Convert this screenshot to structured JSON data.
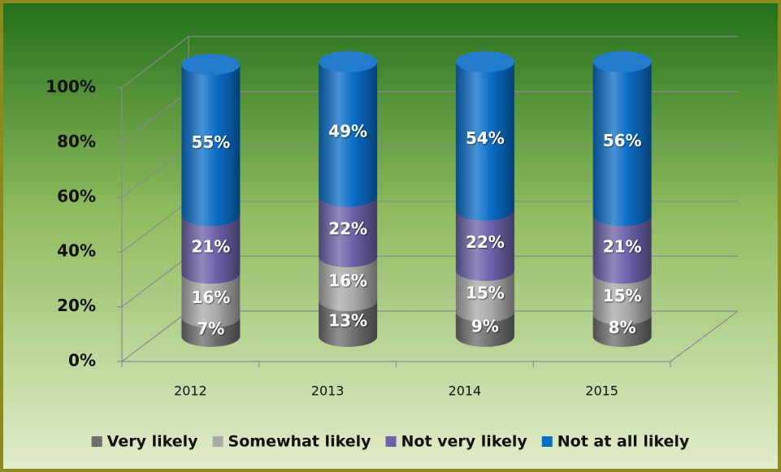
{
  "chart_data": {
    "type": "bar",
    "stacked": true,
    "categories": [
      "2012",
      "2013",
      "2014",
      "2015"
    ],
    "series": [
      {
        "name": "Very likely",
        "color": "#6e6e6e",
        "values": [
          7,
          13,
          9,
          8
        ],
        "value_labels": [
          "7%",
          "13%",
          "9%",
          "8%"
        ]
      },
      {
        "name": "Somewhat likely",
        "color": "#a9a9a9",
        "values": [
          16,
          16,
          15,
          15
        ],
        "value_labels": [
          "16%",
          "16%",
          "15%",
          "15%"
        ]
      },
      {
        "name": "Not very likely",
        "color": "#6b62a8",
        "values": [
          21,
          22,
          22,
          21
        ],
        "value_labels": [
          "21%",
          "22%",
          "22%",
          "21%"
        ]
      },
      {
        "name": "Not at all likely",
        "color": "#0b6cc6",
        "values": [
          55,
          49,
          54,
          56
        ],
        "value_labels": [
          "55%",
          "49%",
          "54%",
          "56%"
        ]
      }
    ],
    "ylim": [
      0,
      100
    ],
    "yticks": [
      {
        "value": 0,
        "label": "0%"
      },
      {
        "value": 20,
        "label": "20%"
      },
      {
        "value": 40,
        "label": "40%"
      },
      {
        "value": 60,
        "label": "60%"
      },
      {
        "value": 80,
        "label": "80%"
      },
      {
        "value": 100,
        "label": "100%"
      }
    ],
    "grid": true,
    "legend": "bottom"
  }
}
